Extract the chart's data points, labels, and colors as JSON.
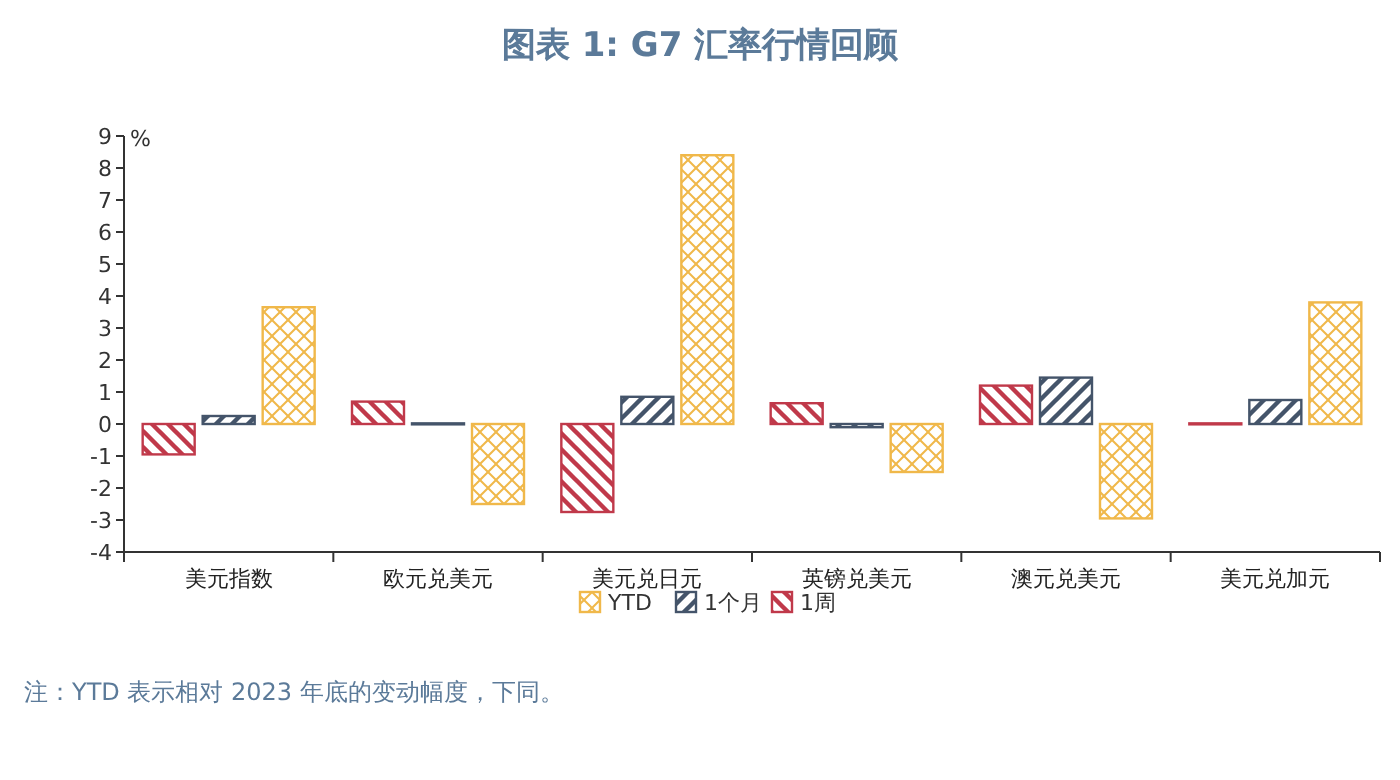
{
  "chart_data": {
    "type": "bar",
    "title": "图表 1: G7 汇率行情回顾",
    "ylabel": "%",
    "categories": [
      "美元指数",
      "欧元兑美元",
      "美元兑日元",
      "英镑兑美元",
      "澳元兑美元",
      "美元兑加元"
    ],
    "series": [
      {
        "name": "1周",
        "color": "#c0394a",
        "values": [
          -0.95,
          0.7,
          -2.75,
          0.65,
          1.2,
          0.02
        ]
      },
      {
        "name": "1个月",
        "color": "#44546a",
        "values": [
          0.25,
          0.02,
          0.85,
          -0.1,
          1.45,
          0.75
        ]
      },
      {
        "name": "YTD",
        "color": "#f0b84a",
        "values": [
          3.65,
          -2.5,
          8.4,
          -1.5,
          -2.95,
          3.8
        ]
      }
    ],
    "ylim": [
      -4,
      9
    ],
    "yticks": [
      -4,
      -3,
      -2,
      -1,
      0,
      1,
      2,
      3,
      4,
      5,
      6,
      7,
      8,
      9
    ],
    "grid": false,
    "legend": "bottom",
    "annotations": [
      "注：YTD 表示相对 2023 年底的变动幅度，下同。"
    ]
  }
}
